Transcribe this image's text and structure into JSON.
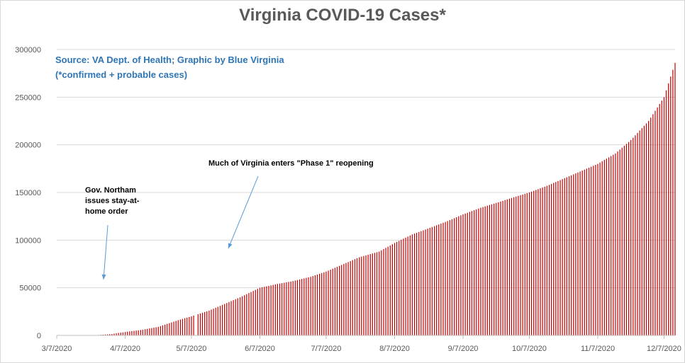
{
  "chart_data": {
    "type": "bar",
    "title": "Virginia COVID-19 Cases*",
    "source_lines": [
      "Source: VA Dept. of Health; Graphic by Blue Virginia",
      "(*confirmed + probable cases)"
    ],
    "xlabel": "",
    "ylabel": "",
    "x_range": [
      "2020-03-07",
      "2020-12-12"
    ],
    "x_tick_labels": [
      "3/7/2020",
      "4/7/2020",
      "5/7/2020",
      "6/7/2020",
      "7/7/2020",
      "8/7/2020",
      "9/7/2020",
      "10/7/2020",
      "11/7/2020",
      "12/7/2020"
    ],
    "ylim": [
      0,
      300000
    ],
    "y_tick_labels": [
      "0",
      "50000",
      "100000",
      "150000",
      "200000",
      "250000",
      "300000"
    ],
    "grid": true,
    "legend": "none",
    "bar_color": "#c00000",
    "series": [
      {
        "daily_start": "2020-03-07",
        "daily_end": "2020-12-12",
        "daily_missing": [
          "2020-05-09"
        ],
        "values_at_dates": [
          {
            "date": "2020-03-07",
            "value": 0
          },
          {
            "date": "2020-03-17",
            "value": 60
          },
          {
            "date": "2020-03-25",
            "value": 300
          },
          {
            "date": "2020-04-01",
            "value": 1500
          },
          {
            "date": "2020-04-07",
            "value": 3600
          },
          {
            "date": "2020-04-15",
            "value": 6000
          },
          {
            "date": "2020-04-22",
            "value": 9000
          },
          {
            "date": "2020-05-01",
            "value": 16000
          },
          {
            "date": "2020-05-07",
            "value": 20000
          },
          {
            "date": "2020-05-15",
            "value": 26000
          },
          {
            "date": "2020-05-22",
            "value": 33000
          },
          {
            "date": "2020-05-29",
            "value": 40000
          },
          {
            "date": "2020-06-07",
            "value": 50000
          },
          {
            "date": "2020-06-15",
            "value": 54000
          },
          {
            "date": "2020-06-22",
            "value": 57000
          },
          {
            "date": "2020-06-30",
            "value": 61500
          },
          {
            "date": "2020-07-07",
            "value": 67000
          },
          {
            "date": "2020-07-15",
            "value": 75000
          },
          {
            "date": "2020-07-22",
            "value": 82000
          },
          {
            "date": "2020-07-31",
            "value": 88000
          },
          {
            "date": "2020-08-07",
            "value": 97000
          },
          {
            "date": "2020-08-15",
            "value": 106000
          },
          {
            "date": "2020-08-22",
            "value": 112000
          },
          {
            "date": "2020-08-31",
            "value": 120000
          },
          {
            "date": "2020-09-07",
            "value": 127000
          },
          {
            "date": "2020-09-15",
            "value": 134000
          },
          {
            "date": "2020-09-22",
            "value": 139000
          },
          {
            "date": "2020-09-30",
            "value": 145000
          },
          {
            "date": "2020-10-07",
            "value": 150000
          },
          {
            "date": "2020-10-15",
            "value": 157000
          },
          {
            "date": "2020-10-22",
            "value": 164000
          },
          {
            "date": "2020-10-31",
            "value": 173000
          },
          {
            "date": "2020-11-07",
            "value": 180000
          },
          {
            "date": "2020-11-15",
            "value": 191000
          },
          {
            "date": "2020-11-22",
            "value": 205000
          },
          {
            "date": "2020-11-30",
            "value": 225000
          },
          {
            "date": "2020-12-07",
            "value": 250000
          },
          {
            "date": "2020-12-12",
            "value": 286000
          }
        ]
      }
    ],
    "annotations": [
      {
        "text": "Gov. Northam issues stay-at-home order",
        "date": "2020-03-30"
      },
      {
        "text": "Much of Virginia enters \"Phase 1\" reopening",
        "date": "2020-05-15"
      }
    ]
  }
}
